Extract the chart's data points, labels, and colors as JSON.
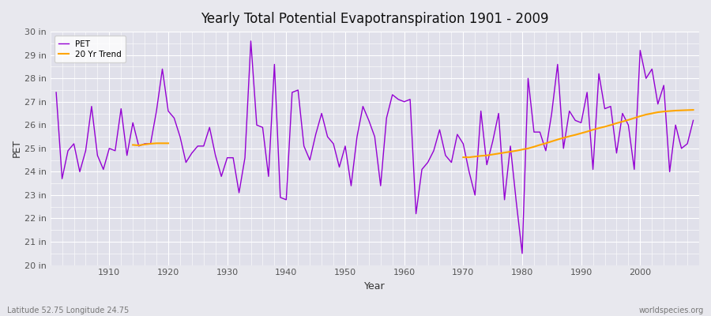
{
  "title": "Yearly Total Potential Evapotranspiration 1901 - 2009",
  "xlabel": "Year",
  "ylabel": "PET",
  "bottom_left_label": "Latitude 52.75 Longitude 24.75",
  "bottom_right_label": "worldspecies.org",
  "pet_color": "#9400D3",
  "trend_color": "#FFA500",
  "fig_facecolor": "#E8E8EE",
  "ax_facecolor": "#E0E0EA",
  "ylim": [
    20,
    30
  ],
  "xlim": [
    1900,
    2010
  ],
  "years": [
    1901,
    1902,
    1903,
    1904,
    1905,
    1906,
    1907,
    1908,
    1909,
    1910,
    1911,
    1912,
    1913,
    1914,
    1915,
    1916,
    1917,
    1918,
    1919,
    1920,
    1921,
    1922,
    1923,
    1924,
    1925,
    1926,
    1927,
    1928,
    1929,
    1930,
    1931,
    1932,
    1933,
    1934,
    1935,
    1936,
    1937,
    1938,
    1939,
    1940,
    1941,
    1942,
    1943,
    1944,
    1945,
    1946,
    1947,
    1948,
    1949,
    1950,
    1951,
    1952,
    1953,
    1954,
    1955,
    1956,
    1957,
    1958,
    1959,
    1960,
    1961,
    1962,
    1963,
    1964,
    1965,
    1966,
    1967,
    1968,
    1969,
    1970,
    1971,
    1972,
    1973,
    1974,
    1975,
    1976,
    1977,
    1978,
    1979,
    1980,
    1981,
    1982,
    1983,
    1984,
    1985,
    1986,
    1987,
    1988,
    1989,
    1990,
    1991,
    1992,
    1993,
    1994,
    1995,
    1996,
    1997,
    1998,
    1999,
    2000,
    2001,
    2002,
    2003,
    2004,
    2005,
    2006,
    2007,
    2008,
    2009
  ],
  "pet_values": [
    27.4,
    23.7,
    24.9,
    25.2,
    24.0,
    24.9,
    26.8,
    24.7,
    24.1,
    25.0,
    24.9,
    26.7,
    24.7,
    26.1,
    25.1,
    25.2,
    25.2,
    26.6,
    28.4,
    26.6,
    26.3,
    25.5,
    24.4,
    24.8,
    25.1,
    25.1,
    25.9,
    24.7,
    23.8,
    24.6,
    24.6,
    23.1,
    24.6,
    29.6,
    26.0,
    25.9,
    23.8,
    28.6,
    22.9,
    22.8,
    27.4,
    27.5,
    25.1,
    24.5,
    25.6,
    26.5,
    25.5,
    25.2,
    24.2,
    25.1,
    23.4,
    25.5,
    26.8,
    26.2,
    25.5,
    23.4,
    26.3,
    27.3,
    27.1,
    27.0,
    27.1,
    22.2,
    24.1,
    24.4,
    24.9,
    25.8,
    24.7,
    24.4,
    25.6,
    25.2,
    24.0,
    23.0,
    26.6,
    24.3,
    25.3,
    26.5,
    22.8,
    25.1,
    22.7,
    20.5,
    28.0,
    25.7,
    25.7,
    24.9,
    26.5,
    28.6,
    25.0,
    26.6,
    26.2,
    26.1,
    27.4,
    24.1,
    28.2,
    26.7,
    26.8,
    24.8,
    26.5,
    26.0,
    24.1,
    29.2,
    28.0,
    28.4,
    26.9,
    27.7,
    24.0,
    26.0,
    25.0,
    25.2,
    26.2
  ],
  "trend_segment1_years": [
    1914,
    1915,
    1916,
    1917,
    1918,
    1919,
    1920
  ],
  "trend_segment1_vals": [
    25.15,
    25.13,
    25.17,
    25.2,
    25.22,
    25.22,
    25.22
  ],
  "trend_segment2_years": [
    1970,
    1971,
    1972,
    1973,
    1974,
    1975,
    1976,
    1977,
    1978,
    1979,
    1980,
    1981,
    1982,
    1983,
    1984,
    1985,
    1986,
    1987,
    1988,
    1989,
    1990,
    1991,
    1992,
    1993,
    1994,
    1995,
    1996,
    1997,
    1998,
    1999,
    2000,
    2001,
    2002,
    2003,
    2004,
    2005,
    2006,
    2007,
    2008,
    2009
  ],
  "trend_segment2_vals": [
    24.62,
    24.62,
    24.65,
    24.68,
    24.7,
    24.74,
    24.78,
    24.82,
    24.86,
    24.9,
    24.95,
    25.0,
    25.07,
    25.15,
    25.22,
    25.3,
    25.38,
    25.45,
    25.52,
    25.58,
    25.65,
    25.72,
    25.8,
    25.87,
    25.93,
    26.0,
    26.08,
    26.15,
    26.22,
    26.3,
    26.38,
    26.45,
    26.5,
    26.55,
    26.58,
    26.6,
    26.62,
    26.63,
    26.64,
    26.65
  ]
}
